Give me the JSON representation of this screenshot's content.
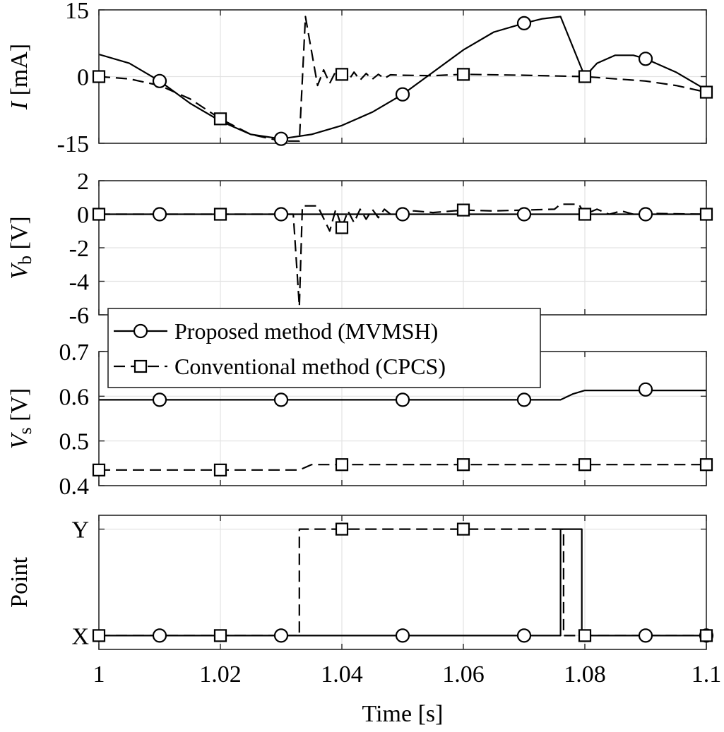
{
  "chart_data": [
    {
      "type": "line",
      "panel": "current",
      "ylabel_main": "I",
      "ylabel_sub": "",
      "ylabel_unit": " [mA]",
      "xlim": [
        1,
        1.1
      ],
      "ylim": [
        -15,
        15
      ],
      "yticks": [
        -15,
        0,
        15
      ],
      "ytick_labels": [
        "-15",
        "0",
        "15"
      ],
      "grid": true,
      "series": [
        {
          "name": "Proposed method (MVMSH)",
          "style": "solid",
          "marker": "circle",
          "x": [
            1.0,
            1.005,
            1.01,
            1.015,
            1.02,
            1.025,
            1.03,
            1.035,
            1.04,
            1.045,
            1.05,
            1.055,
            1.06,
            1.065,
            1.07,
            1.073,
            1.076,
            1.08,
            1.082,
            1.085,
            1.088,
            1.09,
            1.095,
            1.1
          ],
          "y": [
            5,
            3,
            -1,
            -6,
            -10,
            -13,
            -14,
            -13,
            -11,
            -8,
            -4,
            1,
            6,
            10,
            12,
            13,
            13.5,
            0,
            3,
            4.8,
            4.8,
            4,
            1,
            -3
          ],
          "marker_x": [
            1.01,
            1.03,
            1.05,
            1.07,
            1.09
          ],
          "marker_y": [
            -1,
            -14,
            -4,
            12,
            4
          ]
        },
        {
          "name": "Conventional method (CPCS)",
          "style": "dashed",
          "marker": "square",
          "x": [
            1.0,
            1.005,
            1.01,
            1.015,
            1.02,
            1.025,
            1.03,
            1.033,
            1.034,
            1.036,
            1.037,
            1.038,
            1.039,
            1.04,
            1.041,
            1.042,
            1.043,
            1.044,
            1.045,
            1.046,
            1.047,
            1.048,
            1.05,
            1.055,
            1.06,
            1.07,
            1.08,
            1.085,
            1.09,
            1.095,
            1.1
          ],
          "y": [
            0,
            -0.5,
            -2,
            -5,
            -9.5,
            -13,
            -14.5,
            -14.5,
            13.5,
            -2,
            1.5,
            -1.5,
            1.2,
            0.5,
            -1,
            1,
            -0.8,
            0.7,
            -0.6,
            0.5,
            -0.4,
            0.4,
            0.3,
            0.2,
            0.5,
            0.3,
            0,
            -0.5,
            -1,
            -2,
            -3.5
          ],
          "marker_x": [
            1.0,
            1.02,
            1.04,
            1.06,
            1.08,
            1.1
          ],
          "marker_y": [
            0,
            -9.5,
            0.5,
            0.5,
            0,
            -3.5
          ]
        }
      ]
    },
    {
      "type": "line",
      "panel": "battery-voltage",
      "ylabel_main": "V",
      "ylabel_sub": "b",
      "ylabel_unit": " [V]",
      "xlim": [
        1,
        1.1
      ],
      "ylim": [
        -6,
        2
      ],
      "yticks": [
        -6,
        -4,
        -2,
        0,
        2
      ],
      "ytick_labels": [
        "-6",
        "-4",
        "-2",
        "0",
        "2"
      ],
      "grid": true,
      "series": [
        {
          "name": "Proposed method (MVMSH)",
          "style": "solid",
          "marker": "circle",
          "x": [
            1.0,
            1.1
          ],
          "y": [
            0,
            0
          ],
          "marker_x": [
            1.01,
            1.03,
            1.05,
            1.07,
            1.09
          ],
          "marker_y": [
            0,
            0,
            0,
            0,
            0
          ]
        },
        {
          "name": "Conventional method (CPCS)",
          "style": "dashed",
          "marker": "square",
          "x": [
            1.0,
            1.032,
            1.033,
            1.0335,
            1.034,
            1.036,
            1.038,
            1.039,
            1.04,
            1.041,
            1.042,
            1.043,
            1.044,
            1.045,
            1.046,
            1.047,
            1.048,
            1.05,
            1.052,
            1.055,
            1.06,
            1.065,
            1.07,
            1.075,
            1.076,
            1.079,
            1.08,
            1.082,
            1.084,
            1.086,
            1.088,
            1.09,
            1.1
          ],
          "y": [
            0,
            0,
            -5.5,
            0.5,
            0.5,
            0.5,
            -1,
            0.3,
            -0.8,
            0.2,
            -0.5,
            0.3,
            -0.3,
            0.3,
            -0.2,
            0.3,
            0,
            0.2,
            0.2,
            0.1,
            0.25,
            0.2,
            0.25,
            0.3,
            0.6,
            0.6,
            0,
            0.3,
            0,
            0.2,
            0,
            0.05,
            0
          ],
          "marker_x": [
            1.0,
            1.02,
            1.04,
            1.06,
            1.08,
            1.1
          ],
          "marker_y": [
            0,
            0,
            -0.8,
            0.25,
            0,
            0
          ]
        }
      ]
    },
    {
      "type": "line",
      "panel": "sensor-voltage",
      "ylabel_main": "V",
      "ylabel_sub": "s",
      "ylabel_unit": " [V]",
      "xlim": [
        1,
        1.1
      ],
      "ylim": [
        0.4,
        0.7
      ],
      "yticks": [
        0.4,
        0.5,
        0.6,
        0.7
      ],
      "ytick_labels": [
        "0.4",
        "0.5",
        "0.6",
        "0.7"
      ],
      "grid": true,
      "series": [
        {
          "name": "Proposed method (MVMSH)",
          "style": "solid",
          "marker": "circle",
          "x": [
            1.0,
            1.076,
            1.078,
            1.08,
            1.1
          ],
          "y": [
            0.592,
            0.592,
            0.605,
            0.613,
            0.613
          ],
          "marker_x": [
            1.0,
            1.01,
            1.03,
            1.05,
            1.07,
            1.09
          ],
          "marker_y": [
            null,
            0.592,
            0.592,
            0.592,
            0.592,
            0.615
          ]
        },
        {
          "name": "Conventional method (CPCS)",
          "style": "dashed",
          "marker": "square",
          "x": [
            1.0,
            1.033,
            1.035,
            1.04,
            1.1
          ],
          "y": [
            0.435,
            0.435,
            0.447,
            0.447,
            0.447
          ],
          "marker_x": [
            1.0,
            1.02,
            1.04,
            1.06,
            1.08,
            1.1
          ],
          "marker_y": [
            0.435,
            0.435,
            0.447,
            0.447,
            0.447,
            0.447
          ]
        }
      ]
    },
    {
      "type": "line",
      "panel": "operating-point",
      "ylabel_main": "Point",
      "ylabel_sub": "",
      "ylabel_unit": "",
      "xlabel": "Time [s]",
      "xlim": [
        1,
        1.1
      ],
      "xticks": [
        1,
        1.02,
        1.04,
        1.06,
        1.08,
        1.1
      ],
      "xtick_labels": [
        "1",
        "1.02",
        "1.04",
        "1.06",
        "1.08",
        "1.1"
      ],
      "ylim": [
        -0.13,
        1.13
      ],
      "yticks": [
        0,
        1
      ],
      "ytick_labels": [
        "X",
        "Y"
      ],
      "grid": true,
      "series": [
        {
          "name": "Proposed method (MVMSH)",
          "style": "solid",
          "marker": "circle",
          "x": [
            1.0,
            1.076,
            1.076,
            1.0795,
            1.0795,
            1.1
          ],
          "y": [
            0,
            0,
            1,
            1,
            0,
            0
          ],
          "marker_x": [
            1.01,
            1.03,
            1.05,
            1.07,
            1.09,
            1.1
          ],
          "marker_y": [
            0,
            0,
            0,
            0,
            0,
            0
          ]
        },
        {
          "name": "Conventional method (CPCS)",
          "style": "dashed",
          "marker": "square",
          "x": [
            1.0,
            1.033,
            1.033,
            1.0765,
            1.0765,
            1.1
          ],
          "y": [
            0,
            0,
            1,
            1,
            0,
            0
          ],
          "marker_x": [
            1.0,
            1.02,
            1.04,
            1.06,
            1.08,
            1.1
          ],
          "marker_y": [
            0,
            0,
            1,
            1,
            0,
            0
          ]
        }
      ]
    }
  ],
  "legend": {
    "placement": "upper-left of third panel",
    "entries": [
      "Proposed method (MVMSH)",
      "Conventional method (CPCS)"
    ]
  }
}
